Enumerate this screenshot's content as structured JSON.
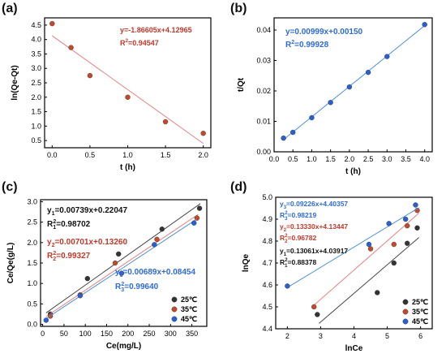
{
  "colors": {
    "black": "#222222",
    "red": "#c0392b",
    "blue": "#2e6bd6",
    "fit_red": "#e88080",
    "fit_blue": "#4a90d9",
    "fit_black": "#444444",
    "dot_black": "#333333",
    "dot_red": "#c24a2a",
    "dot_blue": "#2a5fd0"
  },
  "chart_data": [
    {
      "label": "(a)",
      "type": "scatter",
      "xlabel": "t (h)",
      "ylabel": "ln(Qe-Qt)",
      "xlim": [
        -0.1,
        2.1
      ],
      "ylim": [
        0.25,
        4.75
      ],
      "xticks": [
        "0.0",
        "0.5",
        "1.0",
        "1.5",
        "2.0"
      ],
      "xtick_values": [
        0,
        0.5,
        1.0,
        1.5,
        2.0
      ],
      "yticks": [
        "0.5",
        "1.0",
        "1.5",
        "2.0",
        "2.5",
        "3.0",
        "3.5",
        "4.0",
        "4.5"
      ],
      "ytick_values": [
        0.5,
        1.0,
        1.5,
        2.0,
        2.5,
        3.0,
        3.5,
        4.0,
        4.5
      ],
      "series": [
        {
          "color_key": "dot_red",
          "fit_color_key": "fit_red",
          "x": [
            0,
            0.25,
            0.5,
            1.0,
            1.5,
            2.0
          ],
          "y": [
            4.55,
            3.72,
            2.75,
            2.0,
            1.15,
            0.75
          ],
          "fit": {
            "slope": -1.86605,
            "intercept": 4.12965,
            "x_range": [
              0,
              2.0
            ]
          }
        }
      ],
      "annotations": [
        {
          "text": "y=-1.86605x+4.12965",
          "color_key": "red",
          "sup": ""
        },
        {
          "text": "R",
          "sup": "2",
          "tail": "=0.94547",
          "color_key": "red"
        }
      ]
    },
    {
      "label": "(b)",
      "type": "scatter",
      "xlabel": "t (h)",
      "ylabel": "t/Qt",
      "xlim": [
        0,
        4.2
      ],
      "ylim": [
        0,
        0.044
      ],
      "xticks": [
        "0.0",
        "0.5",
        "1.0",
        "1.5",
        "2.0",
        "2.5",
        "3.0",
        "3.5",
        "4.0"
      ],
      "xtick_values": [
        0,
        0.5,
        1.0,
        1.5,
        2.0,
        2.5,
        3.0,
        3.5,
        4.0
      ],
      "yticks": [
        "0.00",
        "0.01",
        "0.02",
        "0.03",
        "0.04"
      ],
      "ytick_values": [
        0,
        0.01,
        0.02,
        0.03,
        0.04
      ],
      "series": [
        {
          "color_key": "dot_blue",
          "fit_color_key": "fit_blue",
          "x": [
            0.25,
            0.5,
            1.0,
            1.5,
            2.0,
            2.5,
            3.0,
            4.0
          ],
          "y": [
            0.0045,
            0.0064,
            0.0112,
            0.0162,
            0.0213,
            0.0261,
            0.0313,
            0.0418
          ],
          "fit": {
            "slope": 0.00999,
            "intercept": 0.0015,
            "x_range": [
              0.25,
              4.0
            ]
          }
        }
      ],
      "annotations": [
        {
          "text": "y=0.00999x+0.00150",
          "color_key": "blue"
        },
        {
          "text": "R",
          "sup": "2",
          "tail": "=0.99928",
          "color_key": "blue"
        }
      ]
    },
    {
      "label": "(c)",
      "type": "scatter",
      "xlabel": "Ce(mg/L)",
      "ylabel": "Ce/Qe(g/L)",
      "xlim": [
        -5,
        385
      ],
      "ylim": [
        -0.05,
        3.05
      ],
      "xticks": [
        "0",
        "50",
        "100",
        "150",
        "200",
        "250",
        "300",
        "350"
      ],
      "xtick_values": [
        0,
        50,
        100,
        150,
        200,
        250,
        300,
        350
      ],
      "yticks": [
        "0.0",
        "0.5",
        "1.0",
        "1.5",
        "2.0",
        "2.5",
        "3.0"
      ],
      "ytick_values": [
        0,
        0.5,
        1.0,
        1.5,
        2.0,
        2.5,
        3.0
      ],
      "legend": [
        "25℃",
        "35℃",
        "45℃"
      ],
      "series": [
        {
          "name": "25℃",
          "color_key": "dot_black",
          "fit_color_key": "fit_black",
          "x": [
            18,
            105,
            178,
            280,
            368
          ],
          "y": [
            0.25,
            1.12,
            1.72,
            2.33,
            2.84
          ],
          "fit": {
            "slope": 0.00739,
            "intercept": 0.22047,
            "x_range": [
              8,
              370
            ]
          }
        },
        {
          "name": "35℃",
          "color_key": "dot_red",
          "fit_color_key": "fit_red",
          "x": [
            18,
            88,
            170,
            268,
            362
          ],
          "y": [
            0.2,
            0.72,
            1.5,
            2.08,
            2.6
          ],
          "fit": {
            "slope": 0.00701,
            "intercept": 0.1326,
            "x_range": [
              8,
              365
            ]
          }
        },
        {
          "name": "45℃",
          "color_key": "dot_blue",
          "fit_color_key": "fit_blue",
          "x": [
            8,
            88,
            185,
            262,
            355
          ],
          "y": [
            0.1,
            0.7,
            1.25,
            1.95,
            2.48
          ],
          "fit": {
            "slope": 0.00689,
            "intercept": 0.08454,
            "x_range": [
              5,
              360
            ]
          }
        }
      ],
      "annotations": [
        {
          "text": "y",
          "sub": "1",
          "tail": "=0.00739x+0.22047",
          "color_key": "black"
        },
        {
          "text": "R",
          "sub": "1",
          "sup": "2",
          "tail": "=0.98702",
          "color_key": "black"
        },
        {
          "text": "y",
          "sub": "2",
          "tail": "=0.00701x+0.13260",
          "color_key": "red"
        },
        {
          "text": "R",
          "sub": "2",
          "sup": "2",
          "tail": "=0.99327",
          "color_key": "red"
        },
        {
          "text": "y",
          "sub": "3",
          "tail": "=0.00689x+0.08454",
          "color_key": "blue"
        },
        {
          "text": "R",
          "sub": "3",
          "sup": "2",
          "tail": "=0.99640",
          "color_key": "blue"
        }
      ]
    },
    {
      "label": "(d)",
      "type": "scatter",
      "xlabel": "lnCe",
      "ylabel": "lnQe",
      "xlim": [
        1.65,
        6.35
      ],
      "ylim": [
        4.4,
        5.0
      ],
      "xticks": [
        "2",
        "3",
        "4",
        "5",
        "6"
      ],
      "xtick_values": [
        2,
        3,
        4,
        5,
        6
      ],
      "yticks": [
        "4.4",
        "4.5",
        "4.6",
        "4.7",
        "4.8",
        "4.9",
        "5.0"
      ],
      "ytick_values": [
        4.4,
        4.5,
        4.6,
        4.7,
        4.8,
        4.9,
        5.0
      ],
      "legend": [
        "25℃",
        "35℃",
        "45℃"
      ],
      "series": [
        {
          "name": "25℃",
          "color_key": "dot_black",
          "fit_color_key": "fit_black",
          "x": [
            2.9,
            4.7,
            5.2,
            5.6,
            5.9
          ],
          "y": [
            4.465,
            4.565,
            4.7,
            4.79,
            4.86
          ],
          "fit": {
            "slope": 0.13061,
            "intercept": 4.03917,
            "x_range": [
              2.95,
              5.95
            ]
          }
        },
        {
          "name": "35℃",
          "color_key": "dot_red",
          "fit_color_key": "fit_red",
          "x": [
            2.8,
            4.5,
            5.2,
            5.6,
            5.9
          ],
          "y": [
            4.5,
            4.765,
            4.785,
            4.87,
            4.94
          ],
          "fit": {
            "slope": 0.1333,
            "intercept": 4.13447,
            "x_range": [
              2.8,
              5.95
            ]
          }
        },
        {
          "name": "45℃",
          "color_key": "dot_blue",
          "fit_color_key": "fit_blue",
          "x": [
            2.0,
            4.45,
            5.05,
            5.55,
            5.85
          ],
          "y": [
            4.595,
            4.785,
            4.88,
            4.9,
            4.965
          ],
          "fit": {
            "slope": 0.09226,
            "intercept": 4.40357,
            "x_range": [
              2.0,
              5.95
            ]
          }
        }
      ],
      "annotations": [
        {
          "text": "y",
          "sub": "3",
          "tail": "=0.09226x+4.40357",
          "color_key": "blue"
        },
        {
          "text": "R",
          "sub": "3",
          "sup": "2",
          "tail": "=0.98219",
          "color_key": "blue"
        },
        {
          "text": "y",
          "sub": "2",
          "tail": "=0.13330x+4.13447",
          "color_key": "red"
        },
        {
          "text": "R",
          "sub": "2",
          "sup": "2",
          "tail": "=0.96782",
          "color_key": "red"
        },
        {
          "text": "y",
          "sub": "1",
          "tail": "=0.13061x+4.03917",
          "color_key": "black"
        },
        {
          "text": "R",
          "sub": "1",
          "sup": "2",
          "tail": "=0.88378",
          "color_key": "black"
        }
      ]
    }
  ]
}
